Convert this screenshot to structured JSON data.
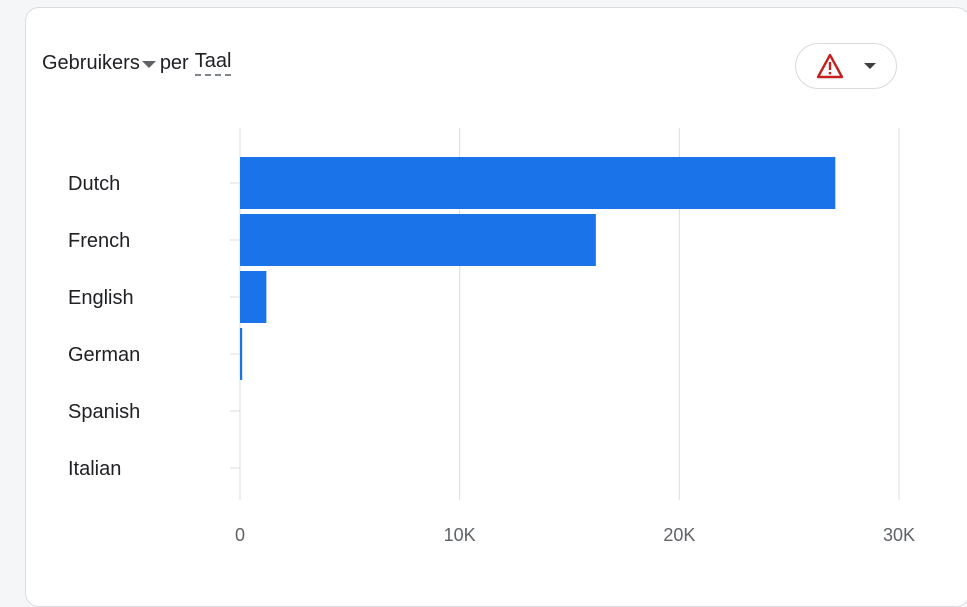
{
  "header": {
    "metric": "Gebruikers",
    "connector": "per",
    "dimension": "Taal"
  },
  "warning_button": {
    "icon": "warning-triangle-icon",
    "icon_color": "#c5221f",
    "dropdown_icon": "caret-down-icon"
  },
  "colors": {
    "bar": "#1a73e8",
    "grid": "#dadce0",
    "text": "#202124",
    "muted": "#5f6368"
  },
  "chart_data": {
    "type": "bar",
    "orientation": "horizontal",
    "categories": [
      "Dutch",
      "French",
      "English",
      "German",
      "Spanish",
      "Italian"
    ],
    "values": [
      27100,
      16200,
      1200,
      100,
      0,
      0
    ],
    "xlim": [
      0,
      30000
    ],
    "ticks": [
      0,
      10000,
      20000,
      30000
    ],
    "tick_labels": [
      "0",
      "10K",
      "20K",
      "30K"
    ],
    "grid": true,
    "legend": "none"
  }
}
